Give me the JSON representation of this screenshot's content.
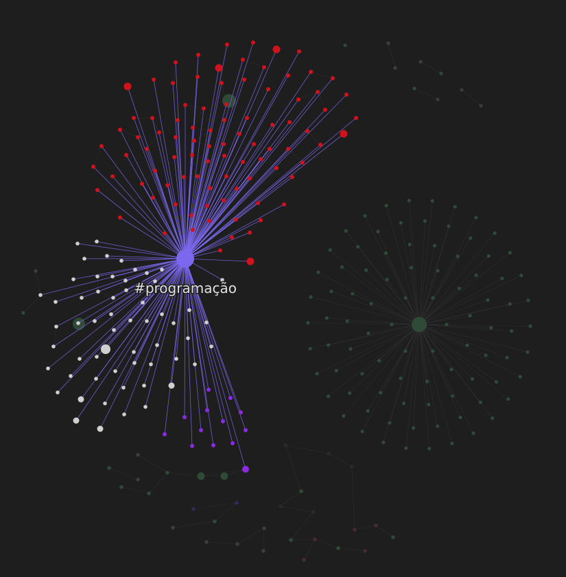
{
  "graph": {
    "focused_node": {
      "label": "#programação",
      "color": "#7b68ee"
    },
    "colors": {
      "background": "#1e1e1e",
      "focus_edge": "#7b68ee",
      "dim_edge": "#3a3a3a",
      "label_text": "#e0e0e0",
      "red_cluster": "#d1111b",
      "white_cluster": "#d0d0d0",
      "purple_cluster": "#8a2be2",
      "dim_green": "#2f4a37",
      "dim_gray": "#3d3d3d",
      "dim_red": "#4a2a2e",
      "dim_purple": "#33295a"
    }
  }
}
